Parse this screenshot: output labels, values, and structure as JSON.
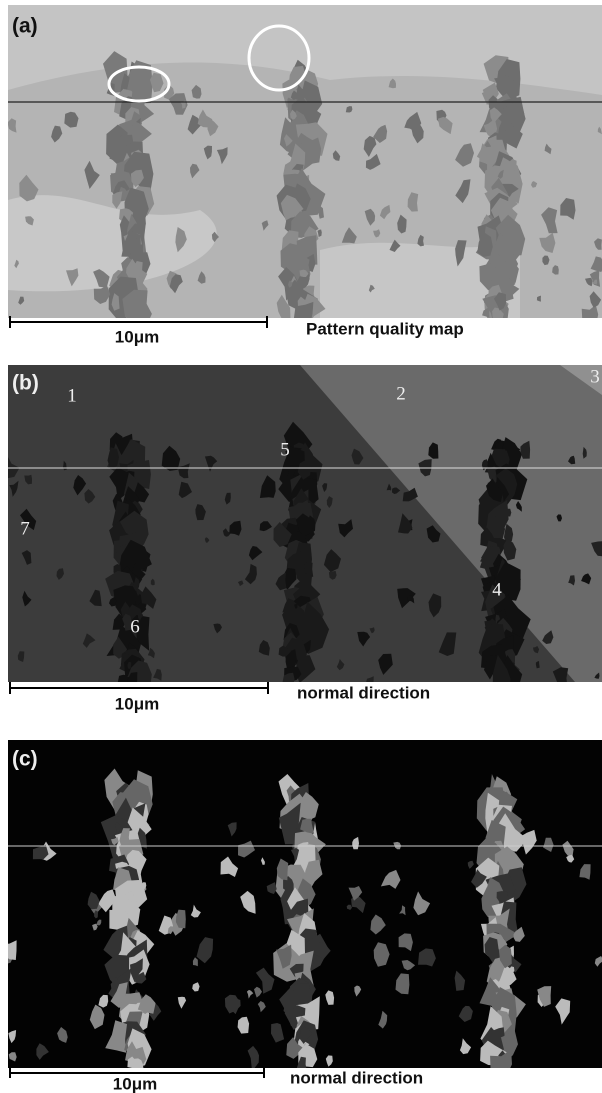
{
  "panels": [
    {
      "label": "(a)",
      "scale_bar": "10μm",
      "caption": "Pattern quality map"
    },
    {
      "label": "(b)",
      "scale_bar": "10μm",
      "caption": "normal direction",
      "grain_labels": [
        "1",
        "2",
        "3",
        "4",
        "5",
        "6",
        "7"
      ]
    },
    {
      "label": "(c)",
      "scale_bar": "10μm",
      "caption": "normal direction"
    }
  ]
}
